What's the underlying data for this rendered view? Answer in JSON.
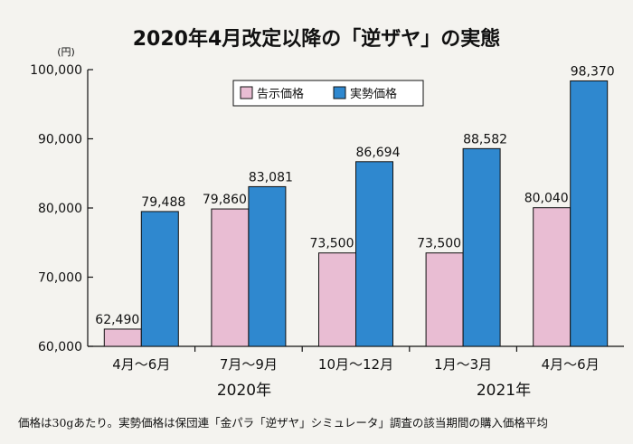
{
  "colors": {
    "background": "#f4f3ef",
    "series_notified": "#e9bdd3",
    "series_actual": "#2f88cf",
    "axis": "#111111"
  },
  "chart_data": {
    "type": "bar",
    "title": "2020年4月改定以降の「逆ザヤ」の実態",
    "y_unit": "(円)",
    "ylim": [
      60000,
      100000
    ],
    "yticks": [
      "60,000",
      "70,000",
      "80,000",
      "90,000",
      "100,000"
    ],
    "ytick_values": [
      60000,
      70000,
      80000,
      90000,
      100000
    ],
    "categories": [
      "4月～6月",
      "7月～9月",
      "10月～12月",
      "1月～3月",
      "4月～6月"
    ],
    "year_labels": [
      "2020年",
      "2021年"
    ],
    "legend_position": "top-center",
    "grid": false,
    "series": [
      {
        "name": "告示価格",
        "color_key": "series_notified",
        "values": [
          62490,
          79860,
          73500,
          73500,
          80040
        ],
        "labels": [
          "62,490",
          "79,860",
          "73,500",
          "73,500",
          "80,040"
        ]
      },
      {
        "name": "実勢価格",
        "color_key": "series_actual",
        "values": [
          79488,
          83081,
          86694,
          88582,
          98370
        ],
        "labels": [
          "79,488",
          "83,081",
          "86,694",
          "88,582",
          "98,370"
        ]
      }
    ],
    "footnote": "価格は30gあたり。実勢価格は保団連「金パラ「逆ザヤ」シミュレータ」調査の該当期間の購入価格平均"
  }
}
